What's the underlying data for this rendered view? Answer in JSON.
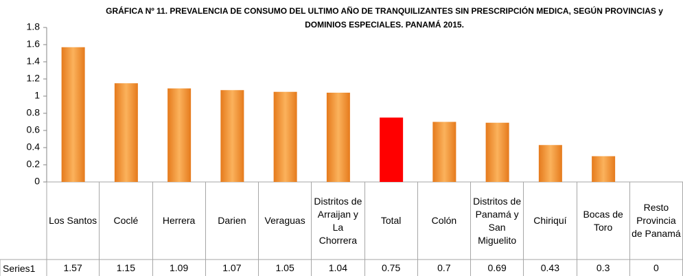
{
  "chart_data": {
    "type": "bar",
    "title": "GRÁFICA Nº 11.  PREVALENCIA DE CONSUMO DEL ULTIMO AÑO DE TRANQUILIZANTES SIN PRESCRIPCIÓN MEDICA, SEGÚN PROVINCIAS y DOMINIOS ESPECIALES. PANAMÁ 2015.",
    "categories": [
      "Los Santos",
      "Coclé",
      "Herrera",
      "Darien",
      "Veraguas",
      "Distritos de Arraijan y La Chorrera",
      "Total",
      "Colón",
      "Distritos de Panamá y San Miguelito",
      "Chiriquí",
      "Bocas de Toro",
      "Resto Provincia de Panamá"
    ],
    "series": [
      {
        "name": "Series1",
        "colors": [
          "#f7963c",
          "#f7963c",
          "#f7963c",
          "#f7963c",
          "#f7963c",
          "#f7963c",
          "#ff0000",
          "#f7963c",
          "#f7963c",
          "#f7963c",
          "#f7963c",
          "#f7963c"
        ],
        "values": [
          1.57,
          1.15,
          1.09,
          1.07,
          1.05,
          1.04,
          0.75,
          0.7,
          0.69,
          0.43,
          0.3,
          0
        ]
      }
    ],
    "ylim": [
      0,
      1.8
    ],
    "yticks": [
      0,
      0.2,
      0.4,
      0.6,
      0.8,
      1,
      1.2,
      1.4,
      1.6,
      1.8
    ],
    "grid": false
  }
}
